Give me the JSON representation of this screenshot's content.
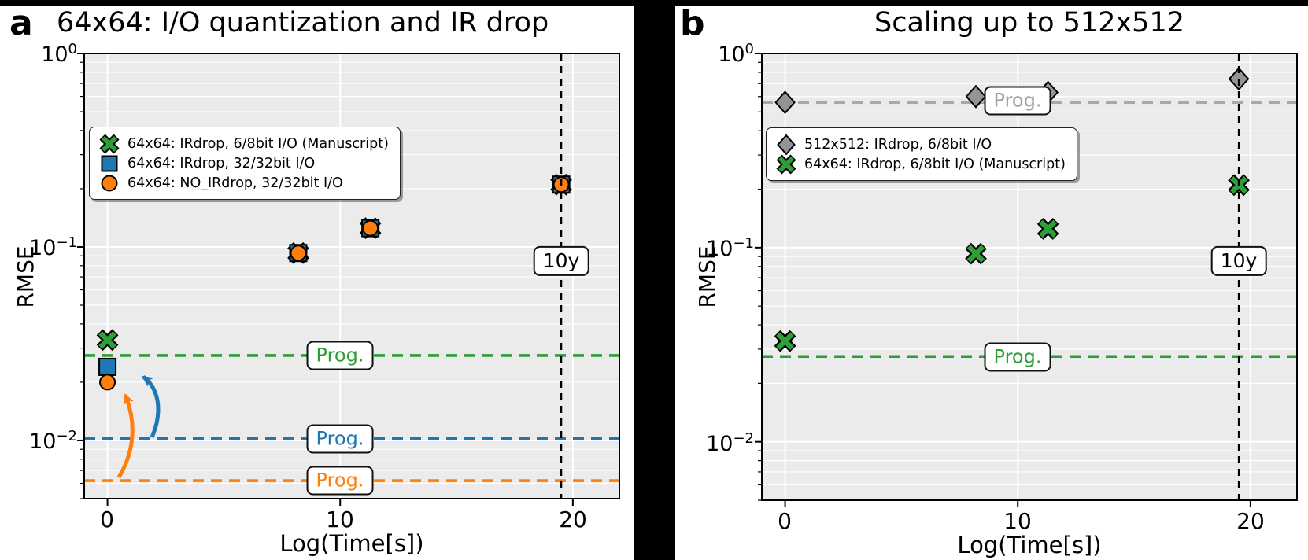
{
  "chart_data": [
    {
      "type": "scatter",
      "panel": "a",
      "corner_label": "a",
      "title": "64x64: I/O quantization and IR drop",
      "xlabel": "Log(Time[s])",
      "ylabel": "RMSE",
      "xlim": [
        -1,
        22
      ],
      "ylim": [
        0.005,
        1
      ],
      "yscale": "log",
      "grid": true,
      "legend_position": "upper left",
      "xticks": [
        0,
        10,
        20
      ],
      "xtick_labels": [
        "0",
        "10",
        "20"
      ],
      "ytick_base": "10",
      "ytick_exps": [
        "0",
        "−1",
        "−2"
      ],
      "series": [
        {
          "name": "64x64: IRdrop, 6/8bit I/O (Manuscript)",
          "marker": "x",
          "color": "#2f9e38",
          "x": [
            0,
            8.2,
            11.3,
            19.5
          ],
          "y": [
            0.033,
            0.093,
            0.125,
            0.21
          ]
        },
        {
          "name": "64x64: IRdrop, 32/32bit I/O",
          "marker": "square",
          "color": "#1f77b4",
          "x": [
            0,
            8.2,
            11.3,
            19.5
          ],
          "y": [
            0.024,
            0.093,
            0.125,
            0.21
          ]
        },
        {
          "name": "64x64: NO_IRdrop, 32/32bit I/O",
          "marker": "circle",
          "color": "#ff7f0e",
          "x": [
            0,
            8.2,
            11.3,
            19.5
          ],
          "y": [
            0.02,
            0.093,
            0.125,
            0.21
          ]
        }
      ],
      "hlines": [
        {
          "y": 0.0275,
          "color": "#2f9e38",
          "label": "Prog."
        },
        {
          "y": 0.0102,
          "color": "#1f77b4",
          "label": "Prog."
        },
        {
          "y": 0.0062,
          "color": "#ff7f0e",
          "label": "Prog."
        }
      ],
      "vline": {
        "x": 19.5,
        "label": "10y",
        "color": "#000000"
      }
    },
    {
      "type": "scatter",
      "panel": "b",
      "corner_label": "b",
      "title": "Scaling up to 512x512",
      "xlabel": "Log(Time[s])",
      "ylabel": "RMSE",
      "xlim": [
        -1,
        22
      ],
      "ylim": [
        0.005,
        1
      ],
      "yscale": "log",
      "grid": true,
      "legend_position": "upper left",
      "xticks": [
        0,
        10,
        20
      ],
      "xtick_labels": [
        "0",
        "10",
        "20"
      ],
      "ytick_base": "10",
      "ytick_exps": [
        "0",
        "−1",
        "−2"
      ],
      "series": [
        {
          "name": "512x512: IRdrop, 6/8bit I/O",
          "marker": "diamond",
          "color": "#949494",
          "x": [
            0,
            8.2,
            11.3,
            19.5
          ],
          "y": [
            0.56,
            0.6,
            0.63,
            0.74
          ]
        },
        {
          "name": "64x64: IRdrop, 6/8bit I/O (Manuscript)",
          "marker": "x",
          "color": "#2f9e38",
          "x": [
            0,
            8.2,
            11.3,
            19.5
          ],
          "y": [
            0.033,
            0.093,
            0.125,
            0.21
          ]
        }
      ],
      "hlines": [
        {
          "y": 0.56,
          "color": "#a8a8a8",
          "label": "Prog."
        },
        {
          "y": 0.0275,
          "color": "#2f9e38",
          "label": "Prog."
        }
      ],
      "vline": {
        "x": 19.5,
        "label": "10y",
        "color": "#000000"
      }
    }
  ],
  "colors": {
    "green": "#2f9e38",
    "blue": "#1f77b4",
    "orange": "#ff7f0e",
    "gray_marker": "#949494",
    "gray_line": "#a8a8a8",
    "plot_background": "#ebebeb"
  }
}
